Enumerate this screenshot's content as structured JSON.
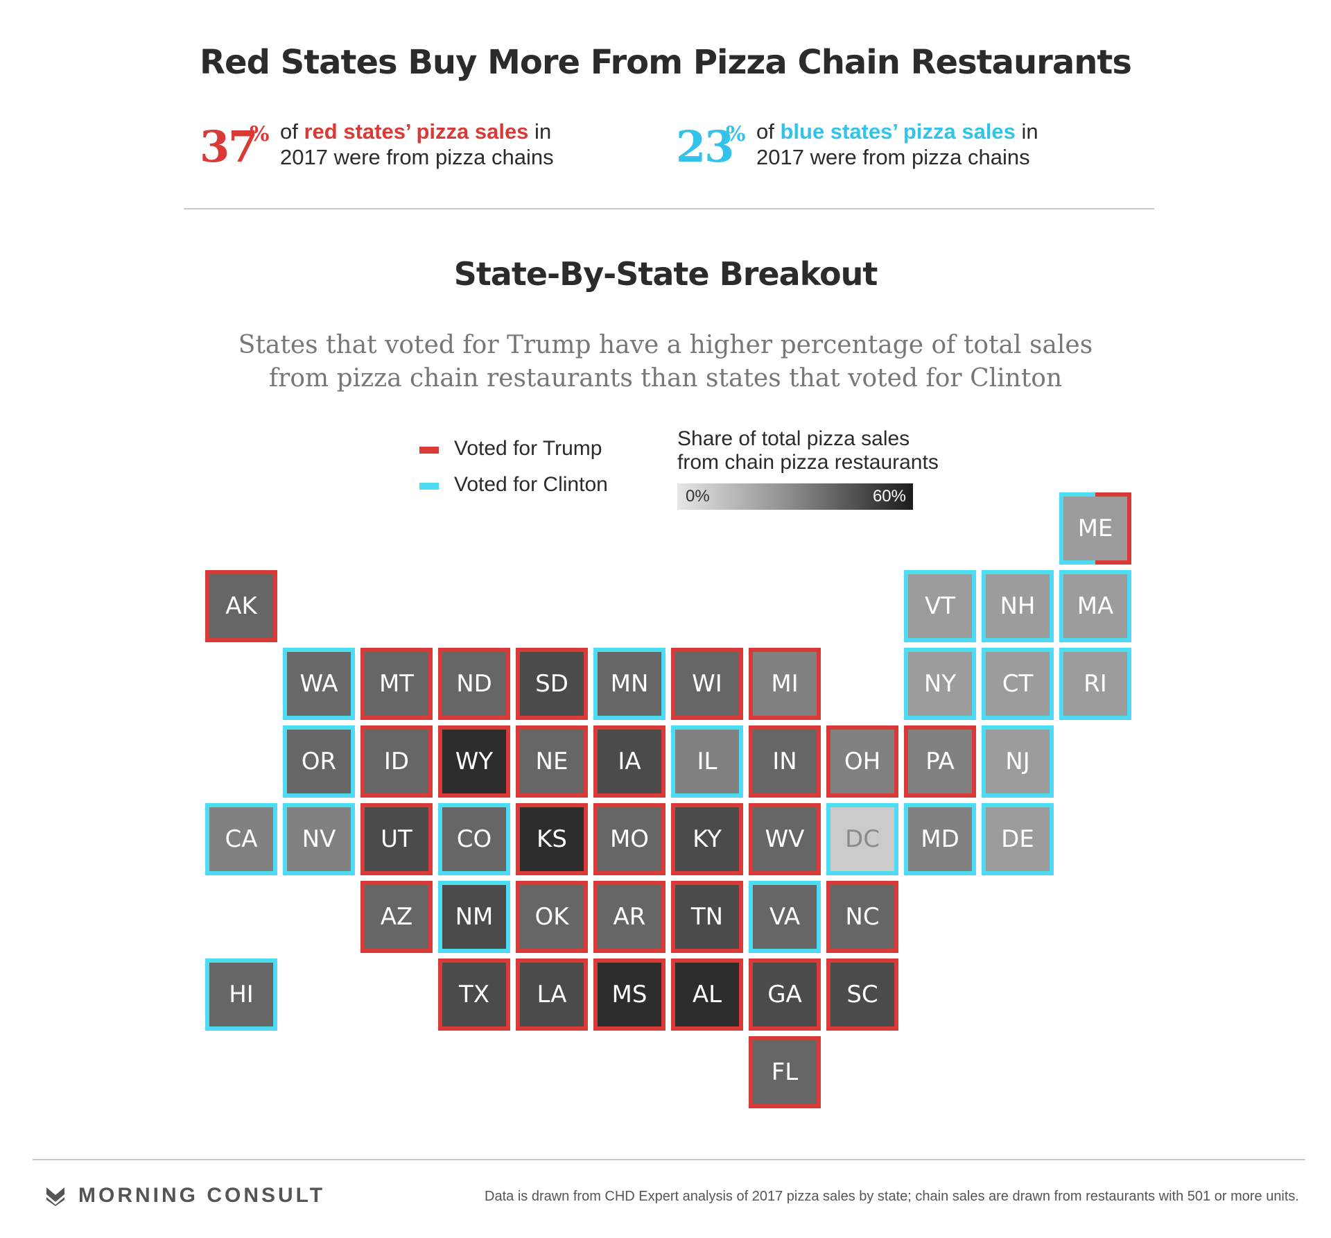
{
  "title": "Red States Buy More From Pizza Chain Restaurants",
  "stats": {
    "red": {
      "value": "37",
      "pct": "%",
      "pre": "of ",
      "highlight": "red states’ pizza sales",
      "post": " in",
      "line2": "2017 were from pizza chains"
    },
    "blue": {
      "value": "23",
      "pct": "%",
      "pre": "of ",
      "highlight": "blue states’ pizza sales",
      "post": " in",
      "line2": "2017 were from pizza chains"
    }
  },
  "subtitle": "State-By-State Breakout",
  "description": "States that voted for Trump have a higher percentage of total sales from pizza chain restaurants than states that voted for Clinton",
  "legend": {
    "trump": "Voted for Trump",
    "clinton": "Voted for Clinton",
    "scale_title_1": "Share of total pizza sales",
    "scale_title_2": "from chain pizza restaurants",
    "scale_min": "0%",
    "scale_max": "60%"
  },
  "colors": {
    "trump": "#d93a36",
    "clinton": "#4ddcf2",
    "scale_low": "#e6e6e6",
    "scale_high": "#1c1c1c"
  },
  "chart_data": {
    "type": "tile-map",
    "scale_range": [
      0,
      60
    ],
    "states": [
      {
        "abbr": "ME",
        "vote": "split",
        "share": 22
      },
      {
        "abbr": "AK",
        "vote": "trump",
        "share": 38
      },
      {
        "abbr": "VT",
        "vote": "clinton",
        "share": 22
      },
      {
        "abbr": "NH",
        "vote": "clinton",
        "share": 22
      },
      {
        "abbr": "MA",
        "vote": "clinton",
        "share": 22
      },
      {
        "abbr": "WA",
        "vote": "clinton",
        "share": 37
      },
      {
        "abbr": "MT",
        "vote": "trump",
        "share": 38
      },
      {
        "abbr": "ND",
        "vote": "trump",
        "share": 38
      },
      {
        "abbr": "SD",
        "vote": "trump",
        "share": 46
      },
      {
        "abbr": "MN",
        "vote": "clinton",
        "share": 38
      },
      {
        "abbr": "WI",
        "vote": "trump",
        "share": 38
      },
      {
        "abbr": "MI",
        "vote": "trump",
        "share": 30
      },
      {
        "abbr": "NY",
        "vote": "clinton",
        "share": 22
      },
      {
        "abbr": "CT",
        "vote": "clinton",
        "share": 22
      },
      {
        "abbr": "RI",
        "vote": "clinton",
        "share": 22
      },
      {
        "abbr": "OR",
        "vote": "clinton",
        "share": 38
      },
      {
        "abbr": "ID",
        "vote": "trump",
        "share": 38
      },
      {
        "abbr": "WY",
        "vote": "trump",
        "share": 55
      },
      {
        "abbr": "NE",
        "vote": "trump",
        "share": 38
      },
      {
        "abbr": "IA",
        "vote": "trump",
        "share": 46
      },
      {
        "abbr": "IL",
        "vote": "clinton",
        "share": 30
      },
      {
        "abbr": "IN",
        "vote": "trump",
        "share": 38
      },
      {
        "abbr": "OH",
        "vote": "trump",
        "share": 30
      },
      {
        "abbr": "PA",
        "vote": "trump",
        "share": 30
      },
      {
        "abbr": "NJ",
        "vote": "clinton",
        "share": 22
      },
      {
        "abbr": "CA",
        "vote": "clinton",
        "share": 30
      },
      {
        "abbr": "NV",
        "vote": "clinton",
        "share": 30
      },
      {
        "abbr": "UT",
        "vote": "trump",
        "share": 46
      },
      {
        "abbr": "CO",
        "vote": "clinton",
        "share": 38
      },
      {
        "abbr": "KS",
        "vote": "trump",
        "share": 55
      },
      {
        "abbr": "MO",
        "vote": "trump",
        "share": 38
      },
      {
        "abbr": "KY",
        "vote": "trump",
        "share": 46
      },
      {
        "abbr": "WV",
        "vote": "trump",
        "share": 38
      },
      {
        "abbr": "DC",
        "vote": "clinton",
        "share": 8
      },
      {
        "abbr": "MD",
        "vote": "clinton",
        "share": 30
      },
      {
        "abbr": "DE",
        "vote": "clinton",
        "share": 22
      },
      {
        "abbr": "AZ",
        "vote": "trump",
        "share": 38
      },
      {
        "abbr": "NM",
        "vote": "clinton",
        "share": 46
      },
      {
        "abbr": "OK",
        "vote": "trump",
        "share": 38
      },
      {
        "abbr": "AR",
        "vote": "trump",
        "share": 38
      },
      {
        "abbr": "TN",
        "vote": "trump",
        "share": 46
      },
      {
        "abbr": "VA",
        "vote": "clinton",
        "share": 38
      },
      {
        "abbr": "NC",
        "vote": "trump",
        "share": 38
      },
      {
        "abbr": "HI",
        "vote": "clinton",
        "share": 38
      },
      {
        "abbr": "TX",
        "vote": "trump",
        "share": 46
      },
      {
        "abbr": "LA",
        "vote": "trump",
        "share": 46
      },
      {
        "abbr": "MS",
        "vote": "trump",
        "share": 55
      },
      {
        "abbr": "AL",
        "vote": "trump",
        "share": 55
      },
      {
        "abbr": "GA",
        "vote": "trump",
        "share": 46
      },
      {
        "abbr": "SC",
        "vote": "trump",
        "share": 46
      },
      {
        "abbr": "FL",
        "vote": "trump",
        "share": 38
      }
    ]
  },
  "footer": {
    "brand": "MORNING CONSULT",
    "logo_icon": "chevron-down-icon",
    "source": "Data is drawn from CHD Expert analysis of 2017 pizza sales by state; chain sales are drawn from restaurants with 501 or more units."
  }
}
